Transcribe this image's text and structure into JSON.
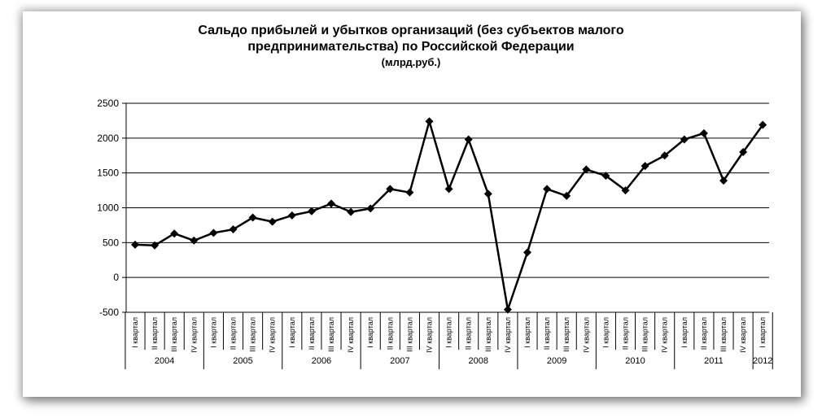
{
  "chart_data": {
    "type": "line",
    "title": "Сальдо прибылей и убытков организаций (без субъектов малого предпринимательства) по Российской Федерации",
    "subtitle": "(млрд.руб.)",
    "quarter_labels": [
      "I квартал",
      "II квартал",
      "III квартал",
      "IV квартал"
    ],
    "years": [
      "2004",
      "2005",
      "2006",
      "2007",
      "2008",
      "2009",
      "2010",
      "2011",
      "2012"
    ],
    "ylim": [
      -500,
      2500
    ],
    "yticks": [
      "2500",
      "2000",
      "1500",
      "1000",
      "500",
      "0",
      "-500"
    ],
    "grid": true,
    "series": [
      {
        "color": "#000000",
        "values": [
          470,
          460,
          630,
          530,
          640,
          690,
          860,
          800,
          890,
          950,
          1060,
          940,
          990,
          1270,
          1220,
          2240,
          1270,
          1980,
          1200,
          -460,
          360,
          1270,
          1170,
          1550,
          1460,
          1250,
          1600,
          1750,
          1980,
          2070,
          1390,
          1800,
          2190
        ]
      }
    ]
  }
}
